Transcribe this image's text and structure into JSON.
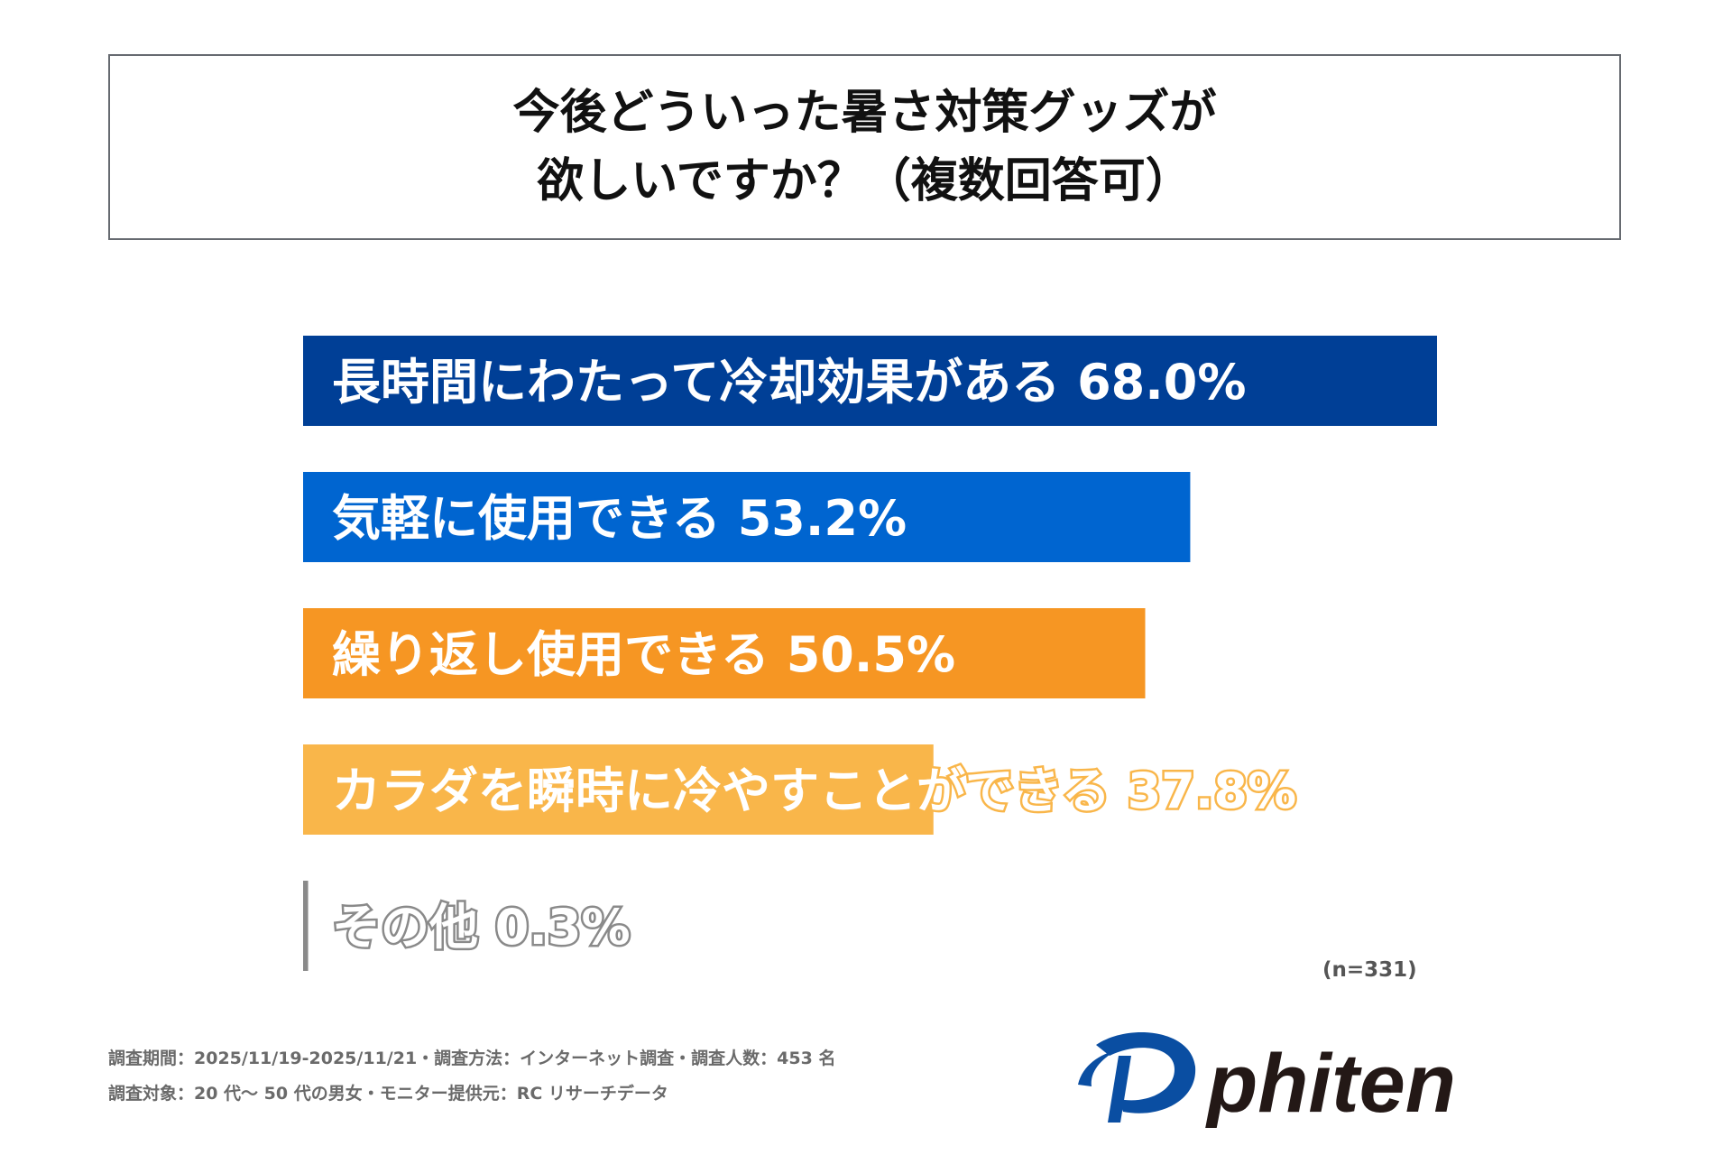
{
  "title": {
    "line1": "今後どういった暑さ対策グッズが",
    "line2": "欲しいですか？（複数回答可）"
  },
  "chart_data": {
    "type": "bar",
    "orientation": "horizontal",
    "categories": [
      "長時間にわたって冷却効果がある",
      "気軽に使用できる",
      "繰り返し使用できる",
      "カラダを瞬時に冷やすことができる",
      "その他"
    ],
    "values": [
      68.0,
      53.2,
      50.5,
      37.8,
      0.3
    ],
    "labels": [
      "68.0%",
      "53.2%",
      "50.5%",
      "37.8%",
      "0.3%"
    ],
    "colors": [
      "#003f96",
      "#0065d0",
      "#f69623",
      "#f9b64a",
      "#8a8a8a"
    ],
    "xlim": [
      0,
      68
    ],
    "grid": false
  },
  "sample_size": "(n=331)",
  "footer": {
    "line1": "調査期間：2025/11/19-2025/11/21・調査方法：インターネット調査・調査人数：453 名",
    "line2": "調査対象：20 代～ 50 代の男女・モニター提供元：RC リサーチデータ"
  },
  "logo": {
    "text": "phiten",
    "colors": {
      "mark": "#0a4ea2",
      "text": "#231816"
    }
  }
}
